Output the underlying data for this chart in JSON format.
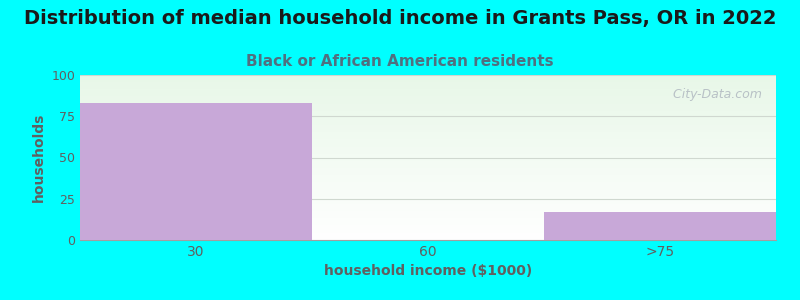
{
  "title": "Distribution of median household income in Grants Pass, OR in 2022",
  "subtitle": "Black or African American residents",
  "categories": [
    "30",
    "60",
    ">75"
  ],
  "values": [
    83,
    0,
    17
  ],
  "bar_color": "#C8A8D8",
  "bar_edgecolor": "#C8A8D8",
  "xlabel": "household income ($1000)",
  "ylabel": "households",
  "ylim": [
    0,
    100
  ],
  "yticks": [
    0,
    25,
    50,
    75,
    100
  ],
  "background_color": "#00FFFF",
  "title_fontsize": 14,
  "subtitle_fontsize": 11,
  "subtitle_color": "#507080",
  "axis_label_color": "#606060",
  "tick_color": "#606060",
  "watermark": "  City-Data.com",
  "watermark_color": "#B0B8C0",
  "grid_color": "#D0D8D0",
  "bar_width": 1.0
}
